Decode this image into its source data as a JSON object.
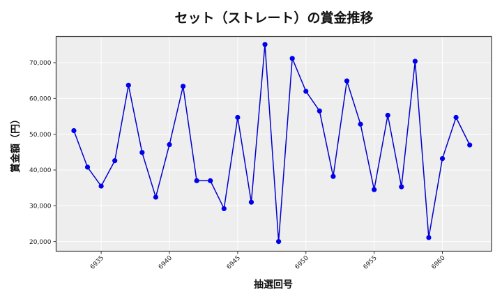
{
  "chart_data": {
    "type": "line",
    "title": "セット（ストレート）の賞金推移",
    "xlabel": "抽選回号",
    "ylabel": "賞金額（円）",
    "x": [
      6933,
      6934,
      6935,
      6936,
      6937,
      6938,
      6939,
      6940,
      6941,
      6942,
      6943,
      6944,
      6945,
      6946,
      6947,
      6948,
      6949,
      6950,
      6951,
      6952,
      6953,
      6954,
      6955,
      6956,
      6957,
      6958,
      6959,
      6960,
      6961,
      6962
    ],
    "series": [
      {
        "name": "賞金額",
        "values": [
          51000,
          40800,
          35500,
          42600,
          63700,
          44900,
          32400,
          47100,
          63400,
          37000,
          37000,
          29200,
          54700,
          31000,
          75100,
          20000,
          71200,
          62000,
          56500,
          38200,
          64900,
          52800,
          34500,
          55300,
          35300,
          70400,
          21100,
          43200,
          54700,
          47000
        ]
      }
    ],
    "xticks": [
      6935,
      6940,
      6945,
      6950,
      6955,
      6960
    ],
    "yticks": [
      20000,
      30000,
      40000,
      50000,
      60000,
      70000
    ],
    "ytick_labels": [
      "20,000",
      "30,000",
      "40,000",
      "50,000",
      "60,000",
      "70,000"
    ],
    "xlim": [
      6931.7,
      6963.6
    ],
    "ylim": [
      17300,
      77300
    ],
    "grid": true,
    "legend": false
  },
  "colors": {
    "line": "#0000cc",
    "marker": "#0000ee",
    "plot_bg": "#eeeeee",
    "grid": "#ffffff",
    "frame": "#333333"
  }
}
